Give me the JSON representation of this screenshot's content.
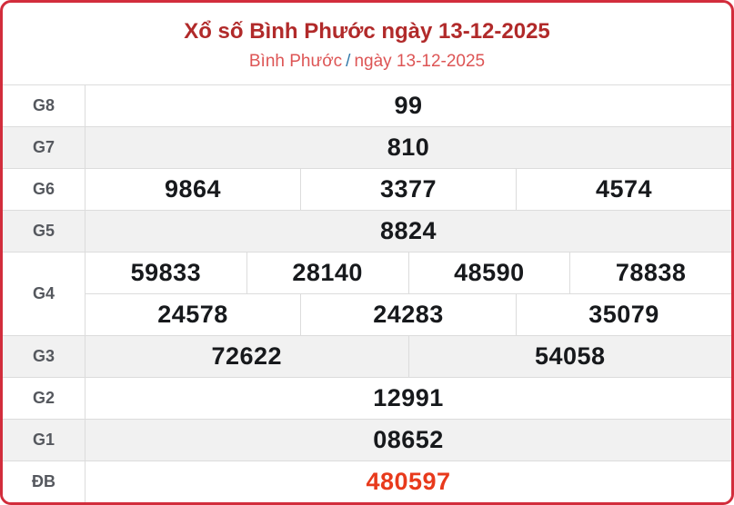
{
  "header": {
    "title": "Xổ số Bình Phước ngày 13-12-2025",
    "breadcrumb": {
      "location": "Bình Phước",
      "separator": "/",
      "date": "ngày 13-12-2025"
    }
  },
  "table": {
    "rows": [
      {
        "id": "g8",
        "label": "G8",
        "groups": [
          [
            "99"
          ]
        ]
      },
      {
        "id": "g7",
        "label": "G7",
        "groups": [
          [
            "810"
          ]
        ]
      },
      {
        "id": "g6",
        "label": "G6",
        "groups": [
          [
            "9864",
            "3377",
            "4574"
          ]
        ]
      },
      {
        "id": "g5",
        "label": "G5",
        "groups": [
          [
            "8824"
          ]
        ]
      },
      {
        "id": "g4",
        "label": "G4",
        "groups": [
          [
            "59833",
            "28140",
            "48590",
            "78838"
          ],
          [
            "24578",
            "24283",
            "35079"
          ]
        ]
      },
      {
        "id": "g3",
        "label": "G3",
        "groups": [
          [
            "72622",
            "54058"
          ]
        ]
      },
      {
        "id": "g2",
        "label": "G2",
        "groups": [
          [
            "12991"
          ]
        ]
      },
      {
        "id": "g1",
        "label": "G1",
        "groups": [
          [
            "08652"
          ]
        ]
      },
      {
        "id": "db",
        "label": "ĐB",
        "groups": [
          [
            "480597"
          ]
        ],
        "highlight": true
      }
    ]
  },
  "colors": {
    "border_red": "#d22d3c",
    "title_red": "#b12a2a",
    "subtitle_red": "#dd5555",
    "separator_blue": "#3179a9",
    "stripe_gray": "#f1f1f1",
    "cell_border": "#dcdcdc",
    "number_black": "#17191c",
    "special_orange": "#e83a1c",
    "label_gray": "#55585e"
  }
}
